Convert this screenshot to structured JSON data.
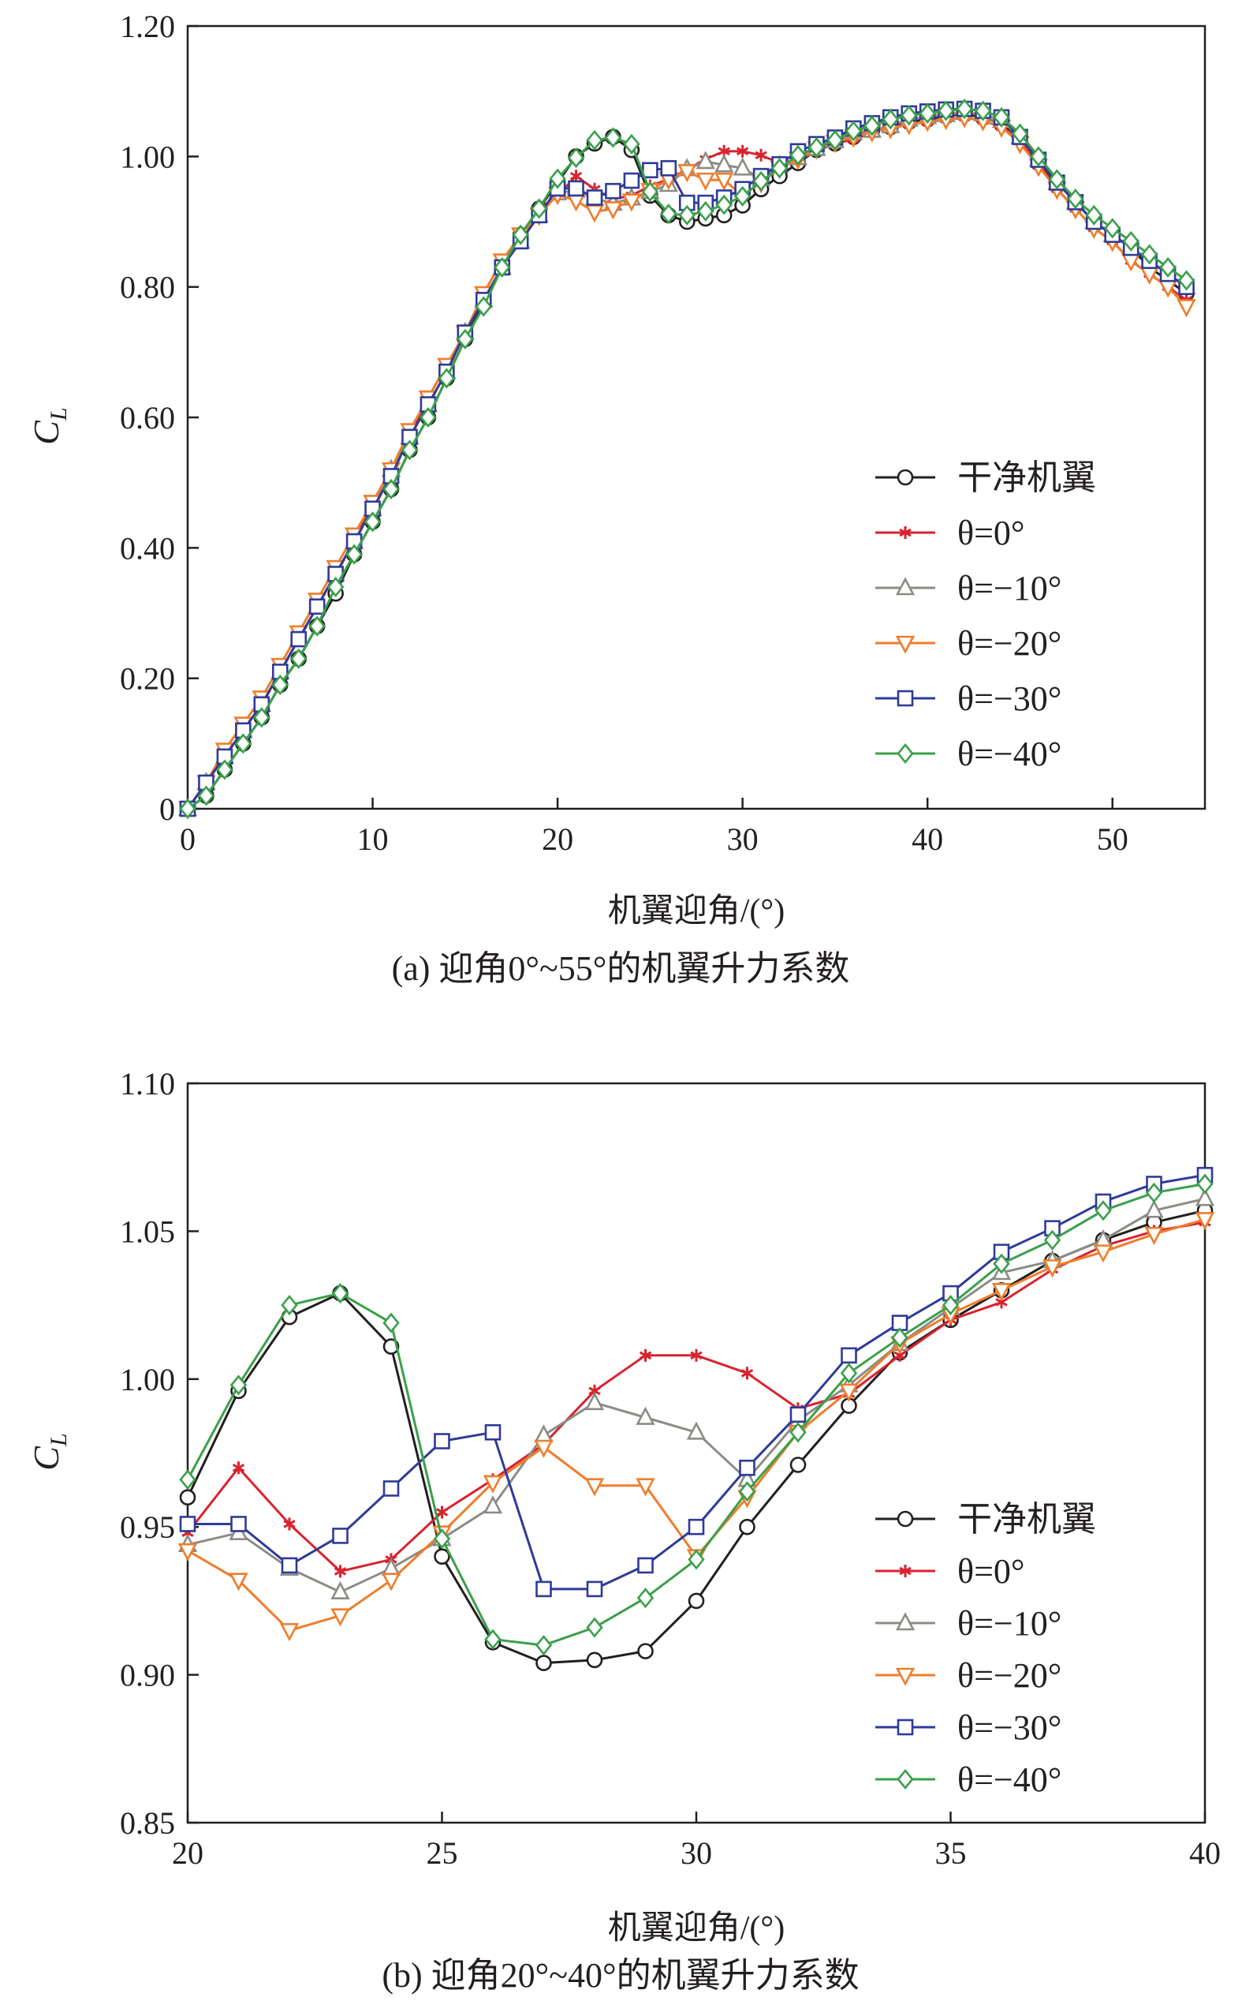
{
  "chart_data": [
    {
      "type": "line",
      "caption": "(a) 迎角0°~55°的机翼升力系数",
      "xlabel": "机翼迎角/(°)",
      "ylabel": "C",
      "ylabel_sub": "L",
      "xlim": [
        0,
        55
      ],
      "ylim": [
        0,
        1.2
      ],
      "xticks": [
        0,
        10,
        20,
        30,
        40,
        50
      ],
      "xtick_labels": [
        "0",
        "10",
        "20",
        "30",
        "40",
        "50"
      ],
      "yticks": [
        0,
        0.2,
        0.4,
        0.6,
        0.8,
        1.0,
        1.2
      ],
      "ytick_labels": [
        "0",
        "0.20",
        "0.40",
        "0.60",
        "0.80",
        "1.00",
        "1.20"
      ],
      "grid": false,
      "legend_position": "lower-right",
      "x": [
        0,
        1,
        2,
        3,
        4,
        5,
        6,
        7,
        8,
        9,
        10,
        11,
        12,
        13,
        14,
        15,
        16,
        17,
        18,
        19,
        20,
        21,
        22,
        23,
        24,
        25,
        26,
        27,
        28,
        29,
        30,
        31,
        32,
        33,
        34,
        35,
        36,
        37,
        38,
        39,
        40,
        41,
        42,
        43,
        44,
        45,
        46,
        47,
        48,
        49,
        50,
        51,
        52,
        53,
        54
      ],
      "series": [
        {
          "name": "干净机翼",
          "color": "#231f20",
          "marker": "circle",
          "values": [
            0.0,
            0.02,
            0.06,
            0.1,
            0.14,
            0.19,
            0.23,
            0.28,
            0.33,
            0.39,
            0.44,
            0.49,
            0.55,
            0.6,
            0.66,
            0.72,
            0.78,
            0.83,
            0.88,
            0.92,
            0.96,
            1.0,
            1.02,
            1.03,
            1.01,
            0.94,
            0.91,
            0.9,
            0.905,
            0.91,
            0.925,
            0.95,
            0.97,
            0.99,
            1.01,
            1.02,
            1.03,
            1.04,
            1.045,
            1.053,
            1.057,
            1.062,
            1.065,
            1.06,
            1.05,
            1.03,
            0.99,
            0.96,
            0.93,
            0.9,
            0.88,
            0.86,
            0.83,
            0.81,
            0.79
          ]
        },
        {
          "name": "θ=0°",
          "color": "#d9232e",
          "marker": "asterisk",
          "values": [
            0.0,
            0.04,
            0.08,
            0.12,
            0.16,
            0.21,
            0.26,
            0.31,
            0.36,
            0.41,
            0.47,
            0.52,
            0.57,
            0.63,
            0.68,
            0.73,
            0.79,
            0.84,
            0.88,
            0.92,
            0.94,
            0.97,
            0.95,
            0.935,
            0.94,
            0.955,
            0.965,
            0.98,
            0.996,
            1.008,
            1.008,
            1.002,
            0.99,
            0.995,
            1.008,
            1.02,
            1.026,
            1.037,
            1.045,
            1.05,
            1.053,
            1.057,
            1.06,
            1.055,
            1.045,
            1.025,
            0.99,
            0.95,
            0.92,
            0.89,
            0.87,
            0.84,
            0.82,
            0.8,
            0.78
          ]
        },
        {
          "name": "θ=−10°",
          "color": "#8c8c86",
          "marker": "triangle",
          "values": [
            0.0,
            0.04,
            0.08,
            0.12,
            0.16,
            0.21,
            0.26,
            0.31,
            0.36,
            0.41,
            0.46,
            0.52,
            0.57,
            0.62,
            0.67,
            0.73,
            0.78,
            0.83,
            0.87,
            0.91,
            0.944,
            0.948,
            0.936,
            0.928,
            0.936,
            0.946,
            0.957,
            0.981,
            0.992,
            0.987,
            0.982,
            0.966,
            0.986,
            0.998,
            1.012,
            1.024,
            1.036,
            1.04,
            1.047,
            1.057,
            1.061,
            1.064,
            1.067,
            1.065,
            1.055,
            1.03,
            0.995,
            0.96,
            0.93,
            0.9,
            0.88,
            0.86,
            0.84,
            0.82,
            0.8
          ]
        },
        {
          "name": "θ=−20°",
          "color": "#ef7d2b",
          "marker": "triangle-down",
          "values": [
            0.0,
            0.04,
            0.09,
            0.13,
            0.17,
            0.22,
            0.27,
            0.32,
            0.37,
            0.42,
            0.47,
            0.52,
            0.58,
            0.63,
            0.68,
            0.73,
            0.79,
            0.84,
            0.88,
            0.91,
            0.942,
            0.932,
            0.915,
            0.92,
            0.932,
            0.948,
            0.965,
            0.977,
            0.964,
            0.964,
            0.94,
            0.96,
            0.982,
            0.996,
            1.012,
            1.022,
            1.03,
            1.038,
            1.043,
            1.049,
            1.054,
            1.057,
            1.06,
            1.055,
            1.045,
            1.02,
            0.985,
            0.95,
            0.92,
            0.89,
            0.87,
            0.84,
            0.82,
            0.8,
            0.77
          ]
        },
        {
          "name": "θ=−30°",
          "color": "#2e3b98",
          "marker": "square",
          "values": [
            0.0,
            0.04,
            0.08,
            0.12,
            0.16,
            0.21,
            0.26,
            0.31,
            0.36,
            0.41,
            0.46,
            0.51,
            0.57,
            0.62,
            0.67,
            0.73,
            0.78,
            0.83,
            0.87,
            0.91,
            0.951,
            0.951,
            0.937,
            0.947,
            0.963,
            0.979,
            0.982,
            0.929,
            0.929,
            0.937,
            0.95,
            0.97,
            0.988,
            1.008,
            1.019,
            1.029,
            1.043,
            1.051,
            1.06,
            1.066,
            1.069,
            1.072,
            1.073,
            1.07,
            1.06,
            1.03,
            0.995,
            0.96,
            0.93,
            0.9,
            0.88,
            0.86,
            0.84,
            0.82,
            0.8
          ]
        },
        {
          "name": "θ=−40°",
          "color": "#3aa04a",
          "marker": "diamond",
          "values": [
            0.0,
            0.02,
            0.06,
            0.1,
            0.14,
            0.19,
            0.23,
            0.28,
            0.34,
            0.39,
            0.44,
            0.49,
            0.55,
            0.6,
            0.66,
            0.72,
            0.77,
            0.83,
            0.88,
            0.92,
            0.966,
            0.998,
            1.025,
            1.029,
            1.019,
            0.946,
            0.912,
            0.91,
            0.916,
            0.926,
            0.939,
            0.962,
            0.982,
            1.002,
            1.014,
            1.025,
            1.039,
            1.047,
            1.057,
            1.063,
            1.066,
            1.07,
            1.073,
            1.07,
            1.06,
            1.035,
            1.0,
            0.965,
            0.935,
            0.91,
            0.89,
            0.87,
            0.85,
            0.83,
            0.81
          ]
        }
      ]
    },
    {
      "type": "line",
      "caption": "(b) 迎角20°~40°的机翼升力系数",
      "xlabel": "机翼迎角/(°)",
      "ylabel": "C",
      "ylabel_sub": "L",
      "xlim": [
        20,
        40
      ],
      "ylim": [
        0.85,
        1.1
      ],
      "xticks": [
        20,
        25,
        30,
        35,
        40
      ],
      "xtick_labels": [
        "20",
        "25",
        "30",
        "35",
        "40"
      ],
      "yticks": [
        0.85,
        0.9,
        0.95,
        1.0,
        1.05,
        1.1
      ],
      "ytick_labels": [
        "0.85",
        "0.90",
        "0.95",
        "1.00",
        "1.05",
        "1.10"
      ],
      "grid": false,
      "legend_position": "lower-right",
      "x": [
        20,
        21,
        22,
        23,
        24,
        25,
        26,
        27,
        28,
        29,
        30,
        31,
        32,
        33,
        34,
        35,
        36,
        37,
        38,
        39,
        40
      ],
      "series": [
        {
          "name": "干净机翼",
          "color": "#231f20",
          "marker": "circle",
          "values": [
            0.96,
            0.996,
            1.021,
            1.029,
            1.011,
            0.94,
            0.911,
            0.904,
            0.905,
            0.908,
            0.925,
            0.95,
            0.971,
            0.991,
            1.009,
            1.02,
            1.03,
            1.04,
            1.047,
            1.053,
            1.057
          ]
        },
        {
          "name": "θ=0°",
          "color": "#d9232e",
          "marker": "asterisk",
          "values": [
            0.948,
            0.97,
            0.951,
            0.935,
            0.939,
            0.955,
            0.966,
            0.978,
            0.996,
            1.008,
            1.008,
            1.002,
            0.99,
            0.995,
            1.008,
            1.02,
            1.026,
            1.037,
            1.045,
            1.05,
            1.053
          ]
        },
        {
          "name": "θ=−10°",
          "color": "#8c8c86",
          "marker": "triangle",
          "values": [
            0.944,
            0.948,
            0.936,
            0.928,
            0.936,
            0.946,
            0.957,
            0.981,
            0.992,
            0.987,
            0.982,
            0.966,
            0.986,
            0.998,
            1.012,
            1.024,
            1.036,
            1.04,
            1.047,
            1.057,
            1.061
          ]
        },
        {
          "name": "θ=−20°",
          "color": "#ef7d2b",
          "marker": "triangle-down",
          "values": [
            0.942,
            0.932,
            0.915,
            0.92,
            0.932,
            0.948,
            0.965,
            0.977,
            0.964,
            0.964,
            0.94,
            0.96,
            0.982,
            0.996,
            1.012,
            1.022,
            1.03,
            1.038,
            1.043,
            1.049,
            1.054
          ]
        },
        {
          "name": "θ=−30°",
          "color": "#2e3b98",
          "marker": "square",
          "values": [
            0.951,
            0.951,
            0.937,
            0.947,
            0.963,
            0.979,
            0.982,
            0.929,
            0.929,
            0.937,
            0.95,
            0.97,
            0.988,
            1.008,
            1.019,
            1.029,
            1.043,
            1.051,
            1.06,
            1.066,
            1.069
          ]
        },
        {
          "name": "θ=−40°",
          "color": "#3aa04a",
          "marker": "diamond",
          "values": [
            0.966,
            0.998,
            1.025,
            1.029,
            1.019,
            0.946,
            0.912,
            0.91,
            0.916,
            0.926,
            0.939,
            0.962,
            0.982,
            1.002,
            1.014,
            1.025,
            1.039,
            1.047,
            1.057,
            1.063,
            1.066
          ]
        }
      ]
    }
  ]
}
